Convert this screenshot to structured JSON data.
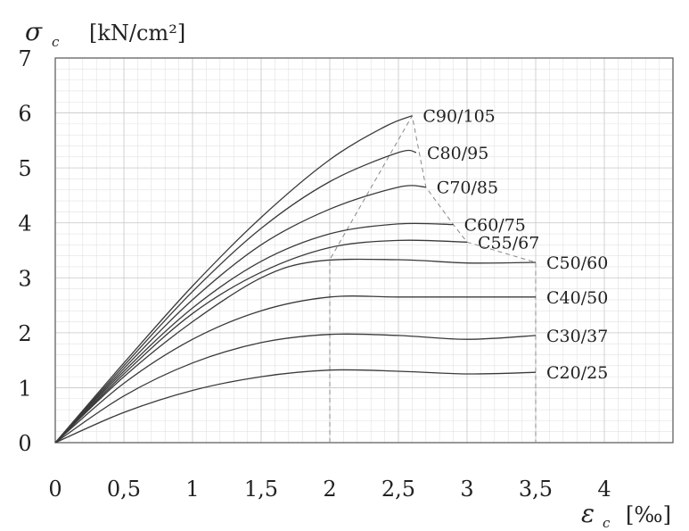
{
  "chart_data": {
    "type": "line",
    "ylabel_symbol": "σ",
    "ylabel_sub": "c",
    "ylabel_unit": "[kN/cm²]",
    "xlabel_symbol": "ε",
    "xlabel_sub": "c",
    "xlabel_unit": "[‰]",
    "xlim": [
      0,
      4.5
    ],
    "ylim": [
      0,
      7
    ],
    "x_ticks": [
      {
        "v": 0,
        "label": "0"
      },
      {
        "v": 0.5,
        "label": "0,5"
      },
      {
        "v": 1,
        "label": "1"
      },
      {
        "v": 1.5,
        "label": "1,5"
      },
      {
        "v": 2,
        "label": "2"
      },
      {
        "v": 2.5,
        "label": "2,5"
      },
      {
        "v": 3,
        "label": "3"
      },
      {
        "v": 3.5,
        "label": "3,5"
      },
      {
        "v": 4,
        "label": "4"
      }
    ],
    "y_ticks": [
      {
        "v": 0,
        "label": "0"
      },
      {
        "v": 1,
        "label": "1"
      },
      {
        "v": 2,
        "label": "2"
      },
      {
        "v": 3,
        "label": "3"
      },
      {
        "v": 4,
        "label": "4"
      },
      {
        "v": 5,
        "label": "5"
      },
      {
        "v": 6,
        "label": "6"
      },
      {
        "v": 7,
        "label": "7"
      }
    ],
    "grid": true,
    "series": [
      {
        "name": "C20/25",
        "points": [
          [
            0,
            0
          ],
          [
            0.5,
            0.55
          ],
          [
            1,
            0.95
          ],
          [
            1.5,
            1.2
          ],
          [
            2,
            1.32
          ],
          [
            2.5,
            1.3
          ],
          [
            3,
            1.25
          ],
          [
            3.5,
            1.28
          ]
        ]
      },
      {
        "name": "C30/37",
        "points": [
          [
            0,
            0
          ],
          [
            0.5,
            0.85
          ],
          [
            1,
            1.45
          ],
          [
            1.5,
            1.82
          ],
          [
            2,
            1.97
          ],
          [
            2.5,
            1.95
          ],
          [
            3,
            1.88
          ],
          [
            3.5,
            1.95
          ]
        ]
      },
      {
        "name": "C40/50",
        "points": [
          [
            0,
            0
          ],
          [
            0.5,
            1.08
          ],
          [
            1,
            1.88
          ],
          [
            1.5,
            2.4
          ],
          [
            2,
            2.65
          ],
          [
            2.5,
            2.65
          ],
          [
            3,
            2.65
          ],
          [
            3.5,
            2.65
          ]
        ]
      },
      {
        "name": "C50/60",
        "points": [
          [
            0,
            0
          ],
          [
            0.5,
            1.2
          ],
          [
            1,
            2.2
          ],
          [
            1.5,
            3.0
          ],
          [
            1.9,
            3.3
          ],
          [
            2.5,
            3.33
          ],
          [
            3,
            3.27
          ],
          [
            3.5,
            3.28
          ]
        ]
      },
      {
        "name": "C55/67",
        "points": [
          [
            0,
            0
          ],
          [
            0.5,
            1.25
          ],
          [
            1,
            2.35
          ],
          [
            1.5,
            3.1
          ],
          [
            2,
            3.55
          ],
          [
            2.5,
            3.68
          ],
          [
            3.0,
            3.65
          ]
        ]
      },
      {
        "name": "C60/75",
        "points": [
          [
            0,
            0
          ],
          [
            0.5,
            1.3
          ],
          [
            1,
            2.45
          ],
          [
            1.5,
            3.3
          ],
          [
            2,
            3.8
          ],
          [
            2.5,
            3.98
          ],
          [
            2.9,
            3.97
          ]
        ]
      },
      {
        "name": "C70/85",
        "points": [
          [
            0,
            0
          ],
          [
            0.5,
            1.35
          ],
          [
            1,
            2.6
          ],
          [
            1.5,
            3.6
          ],
          [
            2,
            4.25
          ],
          [
            2.5,
            4.65
          ],
          [
            2.7,
            4.65
          ]
        ]
      },
      {
        "name": "C80/95",
        "points": [
          [
            0,
            0
          ],
          [
            0.5,
            1.4
          ],
          [
            1,
            2.75
          ],
          [
            1.5,
            3.9
          ],
          [
            2,
            4.75
          ],
          [
            2.5,
            5.28
          ],
          [
            2.63,
            5.28
          ]
        ]
      },
      {
        "name": "C90/105",
        "points": [
          [
            0,
            0
          ],
          [
            0.5,
            1.45
          ],
          [
            1,
            2.85
          ],
          [
            1.5,
            4.1
          ],
          [
            2,
            5.15
          ],
          [
            2.4,
            5.75
          ],
          [
            2.6,
            5.95
          ]
        ]
      }
    ],
    "envelope": [
      [
        2.0,
        1.32
      ],
      [
        2.0,
        3.33
      ],
      [
        2.6,
        5.95
      ],
      [
        2.7,
        4.65
      ],
      [
        2.9,
        3.97
      ],
      [
        3.0,
        3.65
      ],
      [
        3.5,
        3.28
      ],
      [
        3.5,
        0
      ]
    ],
    "envelope_left": [
      [
        2.0,
        0
      ],
      [
        2.0,
        1.32
      ]
    ]
  }
}
